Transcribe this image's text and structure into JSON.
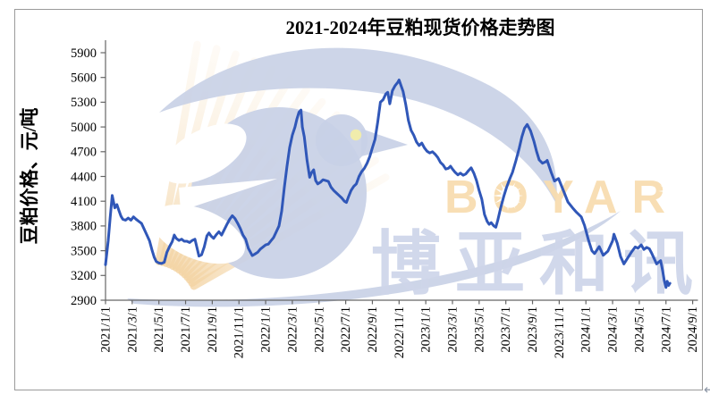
{
  "page": {
    "return_mark": "↵"
  },
  "chart": {
    "title": "2021-2024年豆粕现货价格走势图",
    "y_axis_title": "豆粕价格、元/吨",
    "watermark": {
      "brand_en": "BOYAR",
      "brand_cn": "博亚和讯"
    },
    "colors": {
      "line": "#3057B8",
      "axis": "#666666",
      "tick_label": "#000000",
      "frame": "#9B9B9B",
      "watermark_blue": "#C8D0E6",
      "watermark_orange": "#F6D9B0",
      "watermark_cn_text": "#CFD6EA",
      "bird_eye": "#F0ECAC"
    }
  },
  "chart_data": {
    "type": "line",
    "title": "2021-2024年豆粕现货价格走势图",
    "xlabel": "",
    "ylabel": "豆粕价格、元/吨",
    "ylim": [
      2900,
      5900
    ],
    "y_ticks": [
      5900,
      5600,
      5300,
      5000,
      4700,
      4400,
      4100,
      3800,
      3500,
      3200,
      2900
    ],
    "x_tick_labels": [
      "2021/1/1",
      "2021/3/1",
      "2021/5/1",
      "2021/7/1",
      "2021/9/1",
      "2021/11/1",
      "2022/1/1",
      "2022/3/1",
      "2022/5/1",
      "2022/7/1",
      "2022/9/1",
      "2022/11/1",
      "2023/1/1",
      "2023/3/1",
      "2023/5/1",
      "2023/7/1",
      "2023/9/1",
      "2023/11/1",
      "2024/1/1",
      "2024/3/1",
      "2024/5/1",
      "2024/7/1",
      "2024/9/1"
    ],
    "x_domain_months": [
      0,
      44
    ],
    "x_unit": "months since 2021/1/1; data ends ~2024/7",
    "grid": false,
    "legend": "none",
    "series": [
      {
        "name": "豆粕现货价格(元/吨)",
        "x_months": [
          0,
          0.2,
          0.35,
          0.5,
          0.6,
          0.7,
          0.85,
          1.0,
          1.15,
          1.3,
          1.5,
          1.7,
          1.9,
          2.1,
          2.3,
          2.5,
          2.7,
          2.9,
          3.1,
          3.3,
          3.5,
          3.65,
          3.8,
          4.0,
          4.2,
          4.4,
          4.6,
          4.8,
          5.0,
          5.15,
          5.3,
          5.5,
          5.7,
          5.9,
          6.1,
          6.3,
          6.5,
          6.7,
          6.85,
          7.0,
          7.2,
          7.4,
          7.6,
          7.75,
          7.9,
          8.1,
          8.3,
          8.5,
          8.7,
          8.9,
          9.1,
          9.3,
          9.5,
          9.7,
          9.9,
          10.1,
          10.3,
          10.5,
          10.7,
          10.9,
          11.0,
          11.2,
          11.4,
          11.6,
          11.8,
          12.0,
          12.2,
          12.4,
          12.6,
          12.8,
          13.0,
          13.2,
          13.4,
          13.6,
          13.8,
          14.0,
          14.2,
          14.35,
          14.5,
          14.65,
          14.75,
          14.9,
          15.1,
          15.3,
          15.45,
          15.6,
          15.75,
          15.9,
          16.1,
          16.3,
          16.5,
          16.7,
          16.9,
          17.1,
          17.3,
          17.5,
          17.7,
          17.9,
          18.05,
          18.2,
          18.4,
          18.6,
          18.8,
          19.0,
          19.2,
          19.4,
          19.6,
          19.8,
          20.0,
          20.2,
          20.4,
          20.6,
          20.8,
          21.0,
          21.15,
          21.3,
          21.5,
          21.7,
          21.9,
          22.0,
          22.15,
          22.3,
          22.5,
          22.7,
          22.9,
          23.1,
          23.3,
          23.5,
          23.7,
          23.9,
          24.1,
          24.3,
          24.5,
          24.7,
          24.9,
          25.1,
          25.3,
          25.5,
          25.7,
          25.85,
          26.0,
          26.2,
          26.4,
          26.6,
          26.8,
          27.0,
          27.2,
          27.4,
          27.6,
          27.8,
          28.0,
          28.2,
          28.4,
          28.6,
          28.75,
          28.9,
          29.1,
          29.25,
          29.4,
          29.6,
          29.85,
          30.05,
          30.3,
          30.5,
          30.75,
          31.0,
          31.2,
          31.4,
          31.6,
          31.85,
          32.1,
          32.3,
          32.5,
          32.75,
          33.0,
          33.1,
          33.4,
          33.65,
          33.95,
          34.3,
          34.65,
          35.0,
          35.3,
          35.65,
          35.9,
          36.2,
          36.45,
          36.65,
          37.0,
          37.3,
          37.65,
          38.0,
          38.1,
          38.35,
          38.6,
          38.85,
          39.1,
          39.4,
          39.7,
          39.9,
          40.15,
          40.35,
          40.55,
          40.75,
          40.9,
          41.1,
          41.3,
          41.45,
          41.6,
          41.75,
          41.87,
          42.0,
          42.1,
          42.2,
          42.3
        ],
        "values": [
          3330,
          3620,
          3900,
          4170,
          4090,
          4020,
          4060,
          3990,
          3920,
          3880,
          3870,
          3895,
          3870,
          3910,
          3880,
          3855,
          3830,
          3760,
          3690,
          3620,
          3500,
          3420,
          3370,
          3350,
          3345,
          3360,
          3480,
          3550,
          3610,
          3690,
          3650,
          3625,
          3640,
          3615,
          3615,
          3600,
          3625,
          3640,
          3540,
          3435,
          3450,
          3545,
          3680,
          3715,
          3680,
          3650,
          3695,
          3730,
          3690,
          3755,
          3820,
          3880,
          3925,
          3890,
          3835,
          3770,
          3690,
          3640,
          3530,
          3470,
          3440,
          3460,
          3480,
          3520,
          3545,
          3570,
          3580,
          3620,
          3660,
          3730,
          3800,
          3980,
          4270,
          4520,
          4750,
          4900,
          5000,
          5100,
          5180,
          5205,
          5000,
          4880,
          4600,
          4390,
          4450,
          4480,
          4350,
          4310,
          4330,
          4360,
          4350,
          4340,
          4270,
          4230,
          4200,
          4170,
          4140,
          4100,
          4085,
          4150,
          4230,
          4280,
          4310,
          4400,
          4460,
          4500,
          4560,
          4640,
          4750,
          4850,
          5060,
          5300,
          5330,
          5400,
          5420,
          5280,
          5440,
          5500,
          5540,
          5570,
          5500,
          5430,
          5270,
          5080,
          4960,
          4900,
          4820,
          4775,
          4805,
          4745,
          4705,
          4685,
          4700,
          4670,
          4630,
          4570,
          4540,
          4490,
          4500,
          4525,
          4490,
          4450,
          4420,
          4440,
          4415,
          4430,
          4470,
          4505,
          4440,
          4350,
          4230,
          4125,
          3940,
          3855,
          3820,
          3840,
          3800,
          3785,
          3870,
          4010,
          4160,
          4265,
          4375,
          4450,
          4590,
          4740,
          4880,
          4985,
          5030,
          4955,
          4830,
          4705,
          4600,
          4560,
          4580,
          4595,
          4450,
          4345,
          4375,
          4235,
          4090,
          4020,
          3965,
          3910,
          3805,
          3625,
          3500,
          3465,
          3550,
          3445,
          3495,
          3620,
          3700,
          3590,
          3430,
          3340,
          3405,
          3480,
          3545,
          3530,
          3570,
          3515,
          3540,
          3525,
          3480,
          3410,
          3340,
          3360,
          3380,
          3260,
          3140,
          3055,
          3130,
          3080,
          3105
        ]
      }
    ]
  }
}
